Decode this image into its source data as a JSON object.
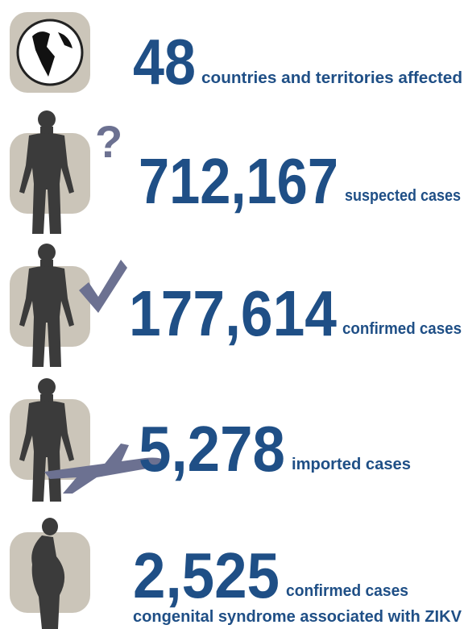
{
  "stats": [
    {
      "number": "48",
      "label": "countries and territories affected"
    },
    {
      "number": "712,167",
      "label": "suspected cases"
    },
    {
      "number": "177,614",
      "label": "confirmed cases"
    },
    {
      "number": "5,278",
      "label": "imported cases"
    },
    {
      "number": "2,525",
      "label": "confirmed cases",
      "note": "congenital syndrome associated with ZIKV"
    }
  ]
}
